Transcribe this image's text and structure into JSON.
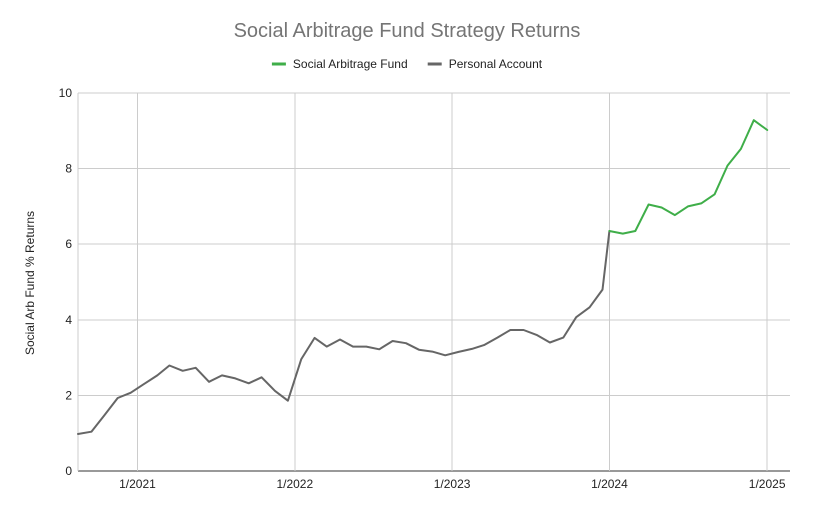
{
  "chart_data": {
    "type": "line",
    "title": "Social Arbitrage Fund Strategy Returns",
    "xlabel": "",
    "ylabel": "Social Arb Fund % Returns",
    "ylim": [
      0,
      10
    ],
    "yticks": [
      0,
      2,
      4,
      6,
      8,
      10
    ],
    "xlim": [
      "2020-08-16",
      "2025-02-23"
    ],
    "xticks": [
      {
        "date": "2021-01-01",
        "label": "1/2021"
      },
      {
        "date": "2022-01-01",
        "label": "1/2022"
      },
      {
        "date": "2023-01-01",
        "label": "1/2023"
      },
      {
        "date": "2024-01-01",
        "label": "1/2024"
      },
      {
        "date": "2025-01-01",
        "label": "1/2025"
      }
    ],
    "grid": true,
    "legend_position": "top",
    "series": [
      {
        "name": "Social Arbitrage Fund",
        "color": "#3fae49",
        "points": [
          [
            "2024-01-01",
            6.35
          ],
          [
            "2024-02-01",
            6.28
          ],
          [
            "2024-03-01",
            6.35
          ],
          [
            "2024-04-01",
            7.05
          ],
          [
            "2024-05-01",
            6.97
          ],
          [
            "2024-06-01",
            6.77
          ],
          [
            "2024-07-01",
            7.0
          ],
          [
            "2024-08-01",
            7.08
          ],
          [
            "2024-09-01",
            7.32
          ],
          [
            "2024-10-01",
            8.08
          ],
          [
            "2024-11-01",
            8.52
          ],
          [
            "2024-12-01",
            9.28
          ],
          [
            "2025-01-01",
            9.02
          ]
        ]
      },
      {
        "name": "Personal Account",
        "color": "#666666",
        "points": [
          [
            "2020-08-16",
            0.98
          ],
          [
            "2020-09-16",
            1.04
          ],
          [
            "2020-10-16",
            1.47
          ],
          [
            "2020-11-16",
            1.93
          ],
          [
            "2020-12-16",
            2.07
          ],
          [
            "2021-01-16",
            2.3
          ],
          [
            "2021-02-16",
            2.53
          ],
          [
            "2021-03-16",
            2.79
          ],
          [
            "2021-04-16",
            2.65
          ],
          [
            "2021-05-16",
            2.73
          ],
          [
            "2021-06-16",
            2.36
          ],
          [
            "2021-07-16",
            2.53
          ],
          [
            "2021-08-16",
            2.45
          ],
          [
            "2021-09-16",
            2.32
          ],
          [
            "2021-10-16",
            2.48
          ],
          [
            "2021-11-16",
            2.12
          ],
          [
            "2021-12-16",
            1.86
          ],
          [
            "2022-01-16",
            2.96
          ],
          [
            "2022-02-16",
            3.52
          ],
          [
            "2022-03-16",
            3.29
          ],
          [
            "2022-04-16",
            3.48
          ],
          [
            "2022-05-16",
            3.29
          ],
          [
            "2022-06-16",
            3.29
          ],
          [
            "2022-07-16",
            3.22
          ],
          [
            "2022-08-16",
            3.44
          ],
          [
            "2022-09-16",
            3.38
          ],
          [
            "2022-10-16",
            3.21
          ],
          [
            "2022-11-16",
            3.16
          ],
          [
            "2022-12-16",
            3.06
          ],
          [
            "2023-01-16",
            3.15
          ],
          [
            "2023-02-16",
            3.23
          ],
          [
            "2023-03-16",
            3.33
          ],
          [
            "2023-04-16",
            3.53
          ],
          [
            "2023-05-16",
            3.73
          ],
          [
            "2023-06-16",
            3.73
          ],
          [
            "2023-07-16",
            3.6
          ],
          [
            "2023-08-16",
            3.4
          ],
          [
            "2023-09-16",
            3.53
          ],
          [
            "2023-10-16",
            4.07
          ],
          [
            "2023-11-16",
            4.33
          ],
          [
            "2023-12-16",
            4.8
          ],
          [
            "2024-01-01",
            6.35
          ]
        ]
      }
    ]
  }
}
